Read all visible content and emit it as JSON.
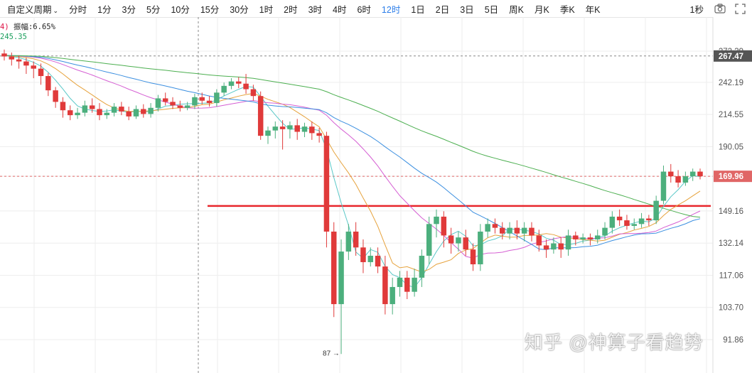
{
  "toolbar": {
    "items": [
      "自定义周期",
      "分时",
      "1分",
      "3分",
      "5分",
      "10分",
      "15分",
      "30分",
      "1时",
      "2时",
      "3时",
      "4时",
      "6时",
      "12时",
      "1日",
      "2日",
      "3日",
      "5日",
      "周K",
      "月K",
      "季K",
      "年K"
    ],
    "active_index": 13,
    "dropdown_icon": "chevron-down-icon",
    "right_label": "1秒",
    "right_icons": [
      "camera-icon",
      "fullscreen-icon"
    ]
  },
  "indicator": {
    "prefix": "4)",
    "amplitude_label": "振幅:6.65%",
    "ma_value": "245.35"
  },
  "chart_data": {
    "type": "candlestick",
    "y_scale": "log",
    "y_ticks": [
      "272.39",
      "242.19",
      "214.55",
      "190.05",
      "169.96",
      "149.16",
      "132.14",
      "117.06",
      "103.70",
      "91.86"
    ],
    "y_tick_values": [
      272.39,
      242.19,
      214.55,
      190.05,
      169.96,
      149.16,
      132.14,
      117.06,
      103.7,
      91.86
    ],
    "price_badges": [
      {
        "label": "267.47",
        "value": 267.47,
        "color": "#555555"
      },
      {
        "label": "169.96",
        "value": 169.96,
        "color": "#e06666"
      }
    ],
    "low_annotation": {
      "label": "87 →",
      "value": 87
    },
    "resistance_line": {
      "value": 152.0,
      "color": "#e8262c"
    },
    "candles": [
      [
        270,
        267,
        274,
        263
      ],
      [
        267,
        264,
        271,
        258
      ],
      [
        264,
        262,
        268,
        255
      ],
      [
        262,
        258,
        266,
        250
      ],
      [
        258,
        255,
        262,
        246
      ],
      [
        255,
        248,
        260,
        240
      ],
      [
        248,
        235,
        251,
        230
      ],
      [
        235,
        225,
        238,
        220
      ],
      [
        225,
        218,
        229,
        212
      ],
      [
        218,
        214,
        222,
        210
      ],
      [
        214,
        216,
        220,
        211
      ],
      [
        216,
        222,
        226,
        213
      ],
      [
        222,
        219,
        228,
        216
      ],
      [
        219,
        214,
        224,
        210
      ],
      [
        214,
        216,
        219,
        211
      ],
      [
        216,
        221,
        224,
        213
      ],
      [
        221,
        217,
        225,
        214
      ],
      [
        217,
        213,
        221,
        210
      ],
      [
        213,
        219,
        222,
        211
      ],
      [
        219,
        215,
        223,
        212
      ],
      [
        215,
        220,
        224,
        212
      ],
      [
        220,
        228,
        231,
        217
      ],
      [
        228,
        225,
        233,
        222
      ],
      [
        225,
        222,
        229,
        219
      ],
      [
        222,
        220,
        226,
        217
      ],
      [
        220,
        222,
        225,
        218
      ],
      [
        222,
        229,
        232,
        219
      ],
      [
        229,
        226,
        233,
        223
      ],
      [
        226,
        224,
        230,
        221
      ],
      [
        224,
        233,
        236,
        221
      ],
      [
        233,
        239,
        242,
        230
      ],
      [
        239,
        243,
        246,
        236
      ],
      [
        243,
        241,
        247,
        237
      ],
      [
        241,
        236,
        250,
        232
      ],
      [
        236,
        230,
        240,
        226
      ],
      [
        230,
        198,
        234,
        195
      ],
      [
        198,
        202,
        205,
        192
      ],
      [
        202,
        205,
        209,
        196
      ],
      [
        205,
        203,
        210,
        188
      ],
      [
        203,
        206,
        209,
        196
      ],
      [
        206,
        201,
        211,
        195
      ],
      [
        201,
        205,
        208,
        197
      ],
      [
        205,
        200,
        209,
        195
      ],
      [
        200,
        198,
        204,
        193
      ],
      [
        198,
        138,
        201,
        130
      ],
      [
        138,
        105,
        143,
        100
      ],
      [
        105,
        128,
        134,
        87
      ],
      [
        128,
        138,
        142,
        124
      ],
      [
        138,
        130,
        143,
        126
      ],
      [
        130,
        123,
        134,
        118
      ],
      [
        123,
        126,
        130,
        121
      ],
      [
        126,
        121,
        130,
        118
      ],
      [
        121,
        105,
        126,
        101
      ],
      [
        105,
        112,
        116,
        101
      ],
      [
        112,
        116,
        119,
        108
      ],
      [
        116,
        110,
        119,
        107
      ],
      [
        110,
        116,
        120,
        108
      ],
      [
        116,
        126,
        129,
        112
      ],
      [
        126,
        142,
        146,
        122
      ],
      [
        142,
        146,
        150,
        135
      ],
      [
        146,
        136,
        149,
        130
      ],
      [
        136,
        132,
        140,
        127
      ],
      [
        132,
        135,
        138,
        128
      ],
      [
        135,
        129,
        139,
        126
      ],
      [
        129,
        122,
        132,
        119
      ],
      [
        122,
        138,
        142,
        119
      ],
      [
        138,
        142,
        145,
        135
      ],
      [
        142,
        140,
        145,
        137
      ],
      [
        140,
        137,
        143,
        134
      ],
      [
        137,
        140,
        143,
        134
      ],
      [
        140,
        137,
        144,
        134
      ],
      [
        137,
        140,
        143,
        133
      ],
      [
        140,
        136,
        143,
        133
      ],
      [
        136,
        131,
        139,
        128
      ],
      [
        131,
        129,
        134,
        125
      ],
      [
        129,
        132,
        135,
        127
      ],
      [
        132,
        129,
        135,
        125
      ],
      [
        129,
        136,
        139,
        126
      ],
      [
        136,
        134,
        138,
        131
      ],
      [
        134,
        135,
        137,
        132
      ],
      [
        135,
        134,
        137,
        131
      ],
      [
        134,
        136,
        139,
        132
      ],
      [
        136,
        140,
        143,
        134
      ],
      [
        140,
        146,
        149,
        137
      ],
      [
        146,
        144,
        150,
        141
      ],
      [
        144,
        141,
        147,
        139
      ],
      [
        141,
        142,
        145,
        139
      ],
      [
        142,
        145,
        148,
        140
      ],
      [
        145,
        144,
        147,
        141
      ],
      [
        144,
        155,
        158,
        142
      ],
      [
        155,
        173,
        177,
        153
      ],
      [
        173,
        170,
        178,
        166
      ],
      [
        170,
        166,
        174,
        163
      ],
      [
        166,
        170,
        173,
        164
      ],
      [
        170,
        173,
        175,
        167
      ],
      [
        173,
        170,
        175,
        168
      ]
    ],
    "moving_averages": [
      {
        "period": 5,
        "color": "#5ac8c8"
      },
      {
        "period": 10,
        "color": "#e6a23c"
      },
      {
        "period": 20,
        "color": "#d55fd3"
      },
      {
        "period": 30,
        "color": "#3b8fe0"
      },
      {
        "period": 60,
        "color": "#4caf50"
      }
    ],
    "colors": {
      "up": "#4caf7d",
      "down": "#e03a3a",
      "grid": "#eeeeee",
      "crosshair": "#888888"
    }
  },
  "watermark": "知乎 @神算子看趋势"
}
